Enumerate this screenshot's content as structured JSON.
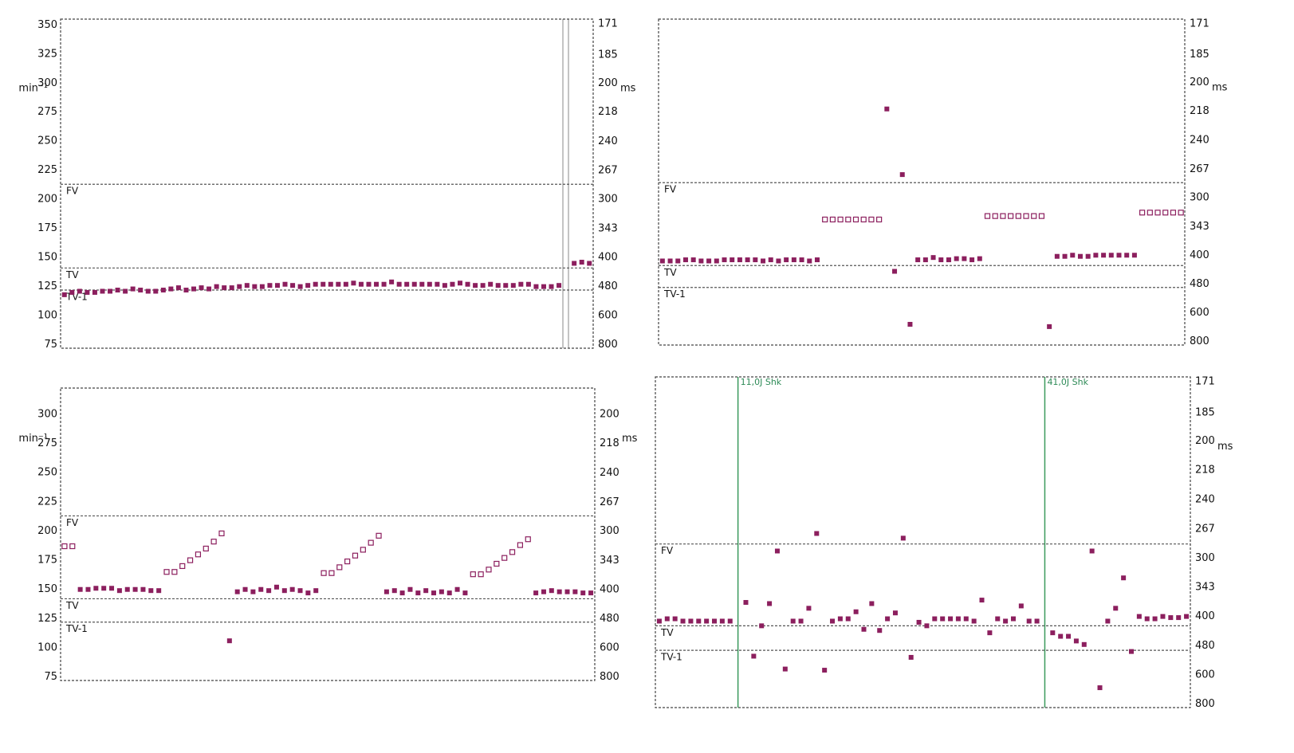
{
  "chart_data": [
    {
      "type": "scatter",
      "ylabel": "min⁻¹",
      "y2label": "ms",
      "ylim": [
        72,
        355
      ],
      "y2lim": [
        833.3,
        169
      ],
      "yticks": [
        75,
        100,
        125,
        150,
        175,
        200,
        225,
        250,
        275,
        300,
        325,
        350
      ],
      "y2ticks": [
        800,
        600,
        480,
        400,
        343,
        300,
        267,
        240,
        218,
        200,
        185,
        171
      ],
      "thresholds": [
        {
          "label": "FV",
          "value": 213
        },
        {
          "label": "TV",
          "value": 141
        },
        {
          "label": "TV-1",
          "value": 122
        }
      ],
      "series": [
        {
          "color": "#8c1f5e",
          "marker": "filled",
          "values": [
            118,
            120,
            121,
            120,
            120,
            121,
            121,
            122,
            121,
            123,
            122,
            121,
            121,
            122,
            123,
            124,
            122,
            123,
            124,
            123,
            125,
            124,
            124,
            125,
            126,
            125,
            125,
            126,
            126,
            127,
            126,
            125,
            126,
            127,
            127,
            127,
            127,
            127,
            128,
            127,
            127,
            127,
            127,
            129,
            127,
            127,
            127,
            127,
            127,
            127,
            126,
            127,
            128,
            127,
            126,
            126,
            127,
            126,
            126,
            126,
            127,
            127,
            125,
            125,
            125,
            126,
            null,
            145,
            146,
            145
          ]
        }
      ]
    },
    {
      "type": "scatter",
      "y2label": "ms",
      "ylim": [
        72,
        355
      ],
      "y2lim": [
        833.3,
        169
      ],
      "y2ticks": [
        800,
        600,
        480,
        400,
        343,
        300,
        267,
        240,
        218,
        200,
        185,
        171
      ],
      "thresholds": [
        {
          "label": "FV",
          "value": 213
        },
        {
          "label": "TV",
          "value": 141
        },
        {
          "label": "TV-1",
          "value": 122
        }
      ],
      "series": [
        {
          "color": "#8c1f5e",
          "marker": "filled",
          "values": [
            145,
            145,
            145,
            146,
            146,
            145,
            145,
            145,
            146,
            146,
            146,
            146,
            146,
            145,
            146,
            145,
            146,
            146,
            146,
            145,
            146,
            null,
            null,
            null,
            null,
            null,
            null,
            null,
            null,
            277,
            136,
            220,
            90,
            146,
            146,
            148,
            146,
            146,
            147,
            147,
            146,
            147,
            null,
            null,
            null,
            null,
            null,
            null,
            null,
            null,
            88,
            149,
            149,
            150,
            149,
            149,
            150,
            150,
            150,
            150,
            150,
            150,
            null,
            null,
            null,
            null,
            null,
            null
          ]
        },
        {
          "color": "#8c1f5e",
          "marker": "open",
          "values": [
            null,
            null,
            null,
            null,
            null,
            null,
            null,
            null,
            null,
            null,
            null,
            null,
            null,
            null,
            null,
            null,
            null,
            null,
            null,
            null,
            null,
            181,
            181,
            181,
            181,
            181,
            181,
            181,
            181,
            null,
            null,
            null,
            null,
            null,
            null,
            null,
            null,
            null,
            null,
            null,
            null,
            null,
            184,
            184,
            184,
            184,
            184,
            184,
            184,
            184,
            null,
            null,
            null,
            null,
            null,
            null,
            null,
            null,
            null,
            null,
            null,
            null,
            187,
            187,
            187,
            187,
            187,
            187
          ]
        }
      ]
    },
    {
      "type": "scatter",
      "ylabel": "min⁻¹",
      "y2label": "ms",
      "ylim": [
        72,
        322.5
      ],
      "y2lim": [
        833.3,
        186
      ],
      "yticks": [
        75,
        100,
        125,
        150,
        175,
        200,
        225,
        250,
        275,
        300
      ],
      "y2ticks": [
        800,
        600,
        480,
        400,
        343,
        300,
        267,
        240,
        218,
        200
      ],
      "thresholds": [
        {
          "label": "FV",
          "value": 213
        },
        {
          "label": "TV",
          "value": 142
        },
        {
          "label": "TV-1",
          "value": 122
        }
      ],
      "series": [
        {
          "color": "#8c1f5e",
          "marker": "filled",
          "values": [
            null,
            null,
            150,
            150,
            151,
            151,
            151,
            149,
            150,
            150,
            150,
            149,
            149,
            null,
            null,
            null,
            null,
            null,
            null,
            null,
            null,
            106,
            148,
            150,
            148,
            150,
            149,
            152,
            149,
            150,
            149,
            147,
            149,
            null,
            null,
            null,
            null,
            null,
            null,
            null,
            null,
            148,
            149,
            147,
            150,
            147,
            149,
            147,
            148,
            147,
            150,
            147,
            null,
            null,
            null,
            null,
            null,
            null,
            null,
            null,
            147,
            148,
            149,
            148,
            148,
            148,
            147,
            147
          ]
        },
        {
          "color": "#8c1f5e",
          "marker": "open",
          "values": [
            187,
            187,
            null,
            null,
            null,
            null,
            null,
            null,
            null,
            null,
            null,
            null,
            null,
            165,
            165,
            170,
            175,
            180,
            185,
            191,
            198,
            null,
            null,
            null,
            null,
            null,
            null,
            null,
            null,
            null,
            null,
            null,
            null,
            164,
            164,
            169,
            174,
            179,
            184,
            190,
            196,
            null,
            null,
            null,
            null,
            null,
            null,
            null,
            null,
            null,
            null,
            null,
            163,
            163,
            167,
            172,
            177,
            182,
            188,
            193,
            null,
            null,
            null,
            null,
            null,
            null,
            null,
            null
          ]
        }
      ]
    },
    {
      "type": "scatter",
      "y2label": "ms",
      "ylim": [
        72,
        355
      ],
      "y2lim": [
        833.3,
        169
      ],
      "y2ticks": [
        800,
        600,
        480,
        400,
        343,
        300,
        267,
        240,
        218,
        200,
        185,
        171
      ],
      "thresholds": [
        {
          "label": "FV",
          "value": 212
        },
        {
          "label": "TV",
          "value": 142
        },
        {
          "label": "TV-1",
          "value": 121
        }
      ],
      "annotations": [
        {
          "text": "11,0J Shk",
          "x": 10
        },
        {
          "text": "41,0J Shk",
          "x": 49
        }
      ],
      "series": [
        {
          "color": "#8c1f5e",
          "marker": "filled",
          "values": [
            146,
            148,
            148,
            146,
            146,
            146,
            146,
            146,
            146,
            146,
            null,
            162,
            116,
            142,
            161,
            206,
            105,
            146,
            146,
            157,
            221,
            104,
            146,
            148,
            148,
            154,
            139,
            161,
            138,
            148,
            153,
            217,
            115,
            145,
            142,
            148,
            148,
            148,
            148,
            148,
            146,
            164,
            136,
            148,
            146,
            148,
            159,
            146,
            146,
            null,
            136,
            133,
            133,
            129,
            126,
            206,
            89,
            146,
            157,
            183,
            120,
            150,
            148,
            148,
            150,
            149,
            149,
            150
          ]
        }
      ]
    }
  ]
}
